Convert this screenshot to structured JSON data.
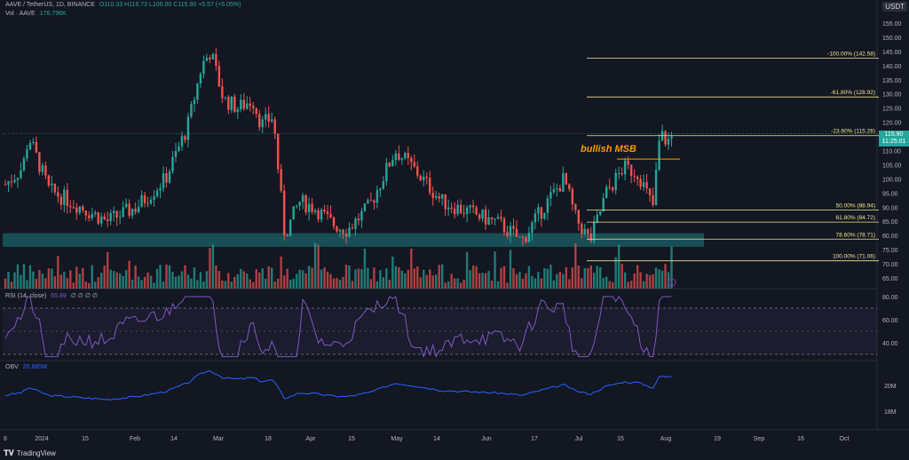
{
  "header": {
    "symbol": "AAVE / TetherUS, 1D, BINANCE",
    "ohlc": "O110.33 H116.73 L106.00 C115.90 +5.57 (+5.05%)",
    "vol_label": "Vol · AAVE",
    "vol_value": "176.796K",
    "vol_repeat": "176.796K +5.57 (+5.05%)"
  },
  "currency": "USDT",
  "price_axis": [
    "155.00",
    "150.00",
    "145.00",
    "140.00",
    "135.00",
    "130.00",
    "125.00",
    "120.00",
    "115.00",
    "110.00",
    "105.00",
    "100.00",
    "95.00",
    "90.00",
    "85.00",
    "80.00",
    "75.00",
    "70.00",
    "65.00"
  ],
  "last_price": {
    "value": "115.90",
    "countdown": "11:25:01"
  },
  "fib_levels": [
    {
      "label": "-100.00% (142.58)"
    },
    {
      "label": "-61.80% (128.92)"
    },
    {
      "label": "-23.60% (115.26)"
    },
    {
      "label": "50.00% (88.94)"
    },
    {
      "label": "61.80% (84.72)"
    },
    {
      "label": "78.60% (78.71)"
    },
    {
      "label": "100.00% (71.06)"
    }
  ],
  "annotation": "bullish MSB",
  "rsi": {
    "title": "RSI (14, close)",
    "value": "65.89",
    "nums": "∅ ∅ ∅ ∅",
    "axis": [
      "80.00",
      "60.00",
      "40.00"
    ]
  },
  "obv": {
    "title": "OBV",
    "value": "20.885M",
    "axis": [
      "20M",
      "18M"
    ]
  },
  "time_axis": [
    "8",
    "2024",
    "15",
    "Feb",
    "14",
    "Mar",
    "18",
    "Apr",
    "15",
    "May",
    "14",
    "Jun",
    "17",
    "Jul",
    "15",
    "Aug",
    "19",
    "Sep",
    "16",
    "Oct"
  ],
  "footer": {
    "brand": "TradingView"
  },
  "colors": {
    "up": "#26a69a",
    "down": "#ef5350",
    "fib": "#f0e68c",
    "zone": "#1a5e63",
    "rsi": "#7e57c2",
    "obv": "#2962ff",
    "annotation": "#ff9800"
  }
}
